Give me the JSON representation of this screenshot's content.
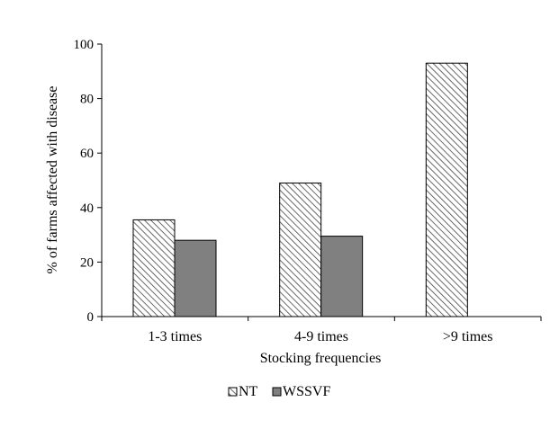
{
  "chart_data": {
    "type": "bar",
    "title": "",
    "xlabel": "Stocking frequencies",
    "ylabel": "% of farms affected with disease",
    "categories": [
      "1-3 times",
      "4-9 times",
      ">9 times"
    ],
    "ylim": [
      0,
      100
    ],
    "yticks": [
      0,
      20,
      40,
      60,
      80,
      100
    ],
    "series": [
      {
        "name": "NT",
        "values": [
          35.5,
          49,
          93
        ],
        "fill": "hatched",
        "color": "#555555"
      },
      {
        "name": "WSSVF",
        "values": [
          28,
          29.5,
          0
        ],
        "fill": "solid",
        "color": "#808080"
      }
    ],
    "grid": false,
    "legend": "bottom-center"
  }
}
